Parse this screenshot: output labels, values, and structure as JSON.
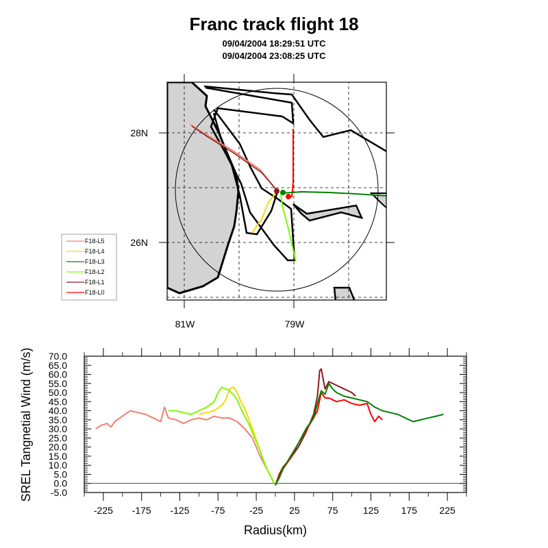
{
  "title": "Franc track flight 18",
  "subtitle_start": "09/04/2004 18:29:51 UTC",
  "subtitle_end": "09/04/2004 23:08:25 UTC",
  "colors": {
    "L5": "#f08070",
    "L4": "#ffd700",
    "L3": "#008000",
    "L2": "#7cfc00",
    "L1": "#8b1a1a",
    "L0": "#ff0000",
    "land": "#d3d3d3"
  },
  "map": {
    "lat_labels": [
      "28N",
      "26N"
    ],
    "lon_labels": [
      "81W",
      "79W"
    ],
    "legend": [
      "F18-L5",
      "F18-L4",
      "F18-L3",
      "F18-L2",
      "F18-L1",
      "F18-L0"
    ]
  },
  "chart_data": {
    "type": "line",
    "xlabel": "Radius(km)",
    "ylabel": "SREL Tangnetial Wind (m/s)",
    "xlim": [
      -250,
      250
    ],
    "ylim": [
      -5,
      70
    ],
    "xticks": [
      "-225",
      "-175",
      "-125",
      "-75",
      "-25",
      "25",
      "75",
      "125",
      "175",
      "225"
    ],
    "yticks": [
      "-5.0",
      "0.0",
      "5.0",
      "10.0",
      "15.0",
      "20.0",
      "25.0",
      "30.0",
      "35.0",
      "40.0",
      "45.0",
      "50.0",
      "55.0",
      "60.0",
      "65.0",
      "70.0"
    ],
    "series": [
      {
        "id": "L5",
        "x": [
          -235,
          -228,
          -220,
          -215,
          -210,
          -200,
          -190,
          -180,
          -170,
          -160,
          -150,
          -145,
          -140,
          -130,
          -120,
          -110,
          -100,
          -90,
          -80,
          -70,
          -60,
          -50,
          -40,
          -30,
          -20,
          -10,
          -5
        ],
        "values": [
          30,
          32,
          33,
          31,
          34,
          37,
          40,
          39,
          38,
          36,
          34,
          42,
          36,
          35,
          33,
          35,
          36,
          35,
          37,
          36,
          36,
          34,
          30,
          25,
          15,
          7,
          3
        ]
      },
      {
        "id": "L4",
        "x": [
          -100,
          -90,
          -80,
          -70,
          -65,
          -60,
          -55,
          -50,
          -45,
          -40,
          -35,
          -30,
          -25,
          -20,
          -15,
          -10,
          -5,
          -2
        ],
        "values": [
          38,
          39,
          40,
          43,
          46,
          52,
          53,
          50,
          45,
          41,
          36,
          30,
          24,
          18,
          12,
          7,
          3,
          1
        ]
      },
      {
        "id": "L2",
        "x": [
          -140,
          -130,
          -120,
          -110,
          -100,
          -90,
          -80,
          -75,
          -70,
          -65,
          -60,
          -55,
          -50,
          -45,
          -40,
          -35,
          -30,
          -25,
          -20,
          -15,
          -10,
          -5,
          -2
        ],
        "values": [
          40,
          40,
          39,
          38,
          40,
          42,
          45,
          50,
          53,
          52,
          51,
          49,
          46,
          41,
          37,
          33,
          28,
          23,
          18,
          12,
          7,
          3,
          0
        ]
      },
      {
        "id": "L1",
        "x": [
          0,
          5,
          10,
          20,
          30,
          40,
          50,
          55,
          58,
          60,
          65,
          70,
          75,
          80,
          90,
          100,
          105
        ],
        "values": [
          -1,
          5,
          9,
          14,
          20,
          28,
          38,
          48,
          62,
          63,
          52,
          56,
          55,
          54,
          52,
          50,
          48
        ]
      },
      {
        "id": "L0",
        "x": [
          0,
          5,
          10,
          20,
          30,
          40,
          50,
          55,
          60,
          65,
          70,
          75,
          80,
          90,
          100,
          110,
          120,
          125,
          130,
          135,
          140
        ],
        "values": [
          -1,
          4,
          8,
          14,
          22,
          29,
          36,
          40,
          50,
          47,
          47,
          46,
          45,
          46,
          44,
          43,
          44,
          38,
          34,
          37,
          35
        ]
      },
      {
        "id": "L3",
        "x": [
          0,
          5,
          10,
          20,
          30,
          40,
          50,
          55,
          60,
          65,
          70,
          75,
          80,
          90,
          100,
          110,
          120,
          130,
          140,
          150,
          160,
          170,
          180,
          190,
          200,
          210,
          220
        ],
        "values": [
          -1,
          3,
          8,
          15,
          22,
          30,
          36,
          44,
          51,
          49,
          55,
          52,
          50,
          48,
          47,
          46,
          45,
          42,
          40,
          39,
          38,
          36,
          34,
          35,
          36,
          37,
          38
        ]
      }
    ]
  }
}
